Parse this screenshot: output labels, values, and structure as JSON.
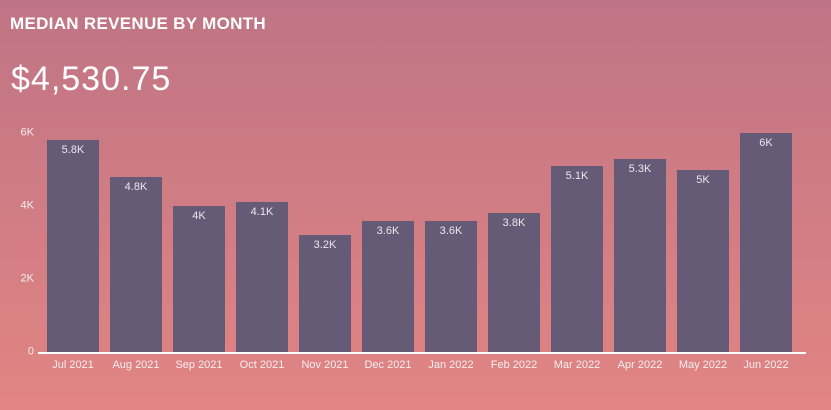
{
  "header": {
    "title": "MEDIAN REVENUE BY MONTH",
    "big_value": "$4,530.75"
  },
  "chart_data": {
    "type": "bar",
    "title": "MEDIAN REVENUE BY MONTH",
    "subtitle": "$4,530.75",
    "categories": [
      "Jul 2021",
      "Aug 2021",
      "Sep 2021",
      "Oct 2021",
      "Nov 2021",
      "Dec 2021",
      "Jan 2022",
      "Feb 2022",
      "Mar 2022",
      "Apr 2022",
      "May 2022",
      "Jun 2022"
    ],
    "values": [
      5800,
      4800,
      4000,
      4100,
      3200,
      3600,
      3600,
      3800,
      5100,
      5300,
      5000,
      6000
    ],
    "bar_labels": [
      "5.8K",
      "4.8K",
      "4K",
      "4.1K",
      "3.2K",
      "3.6K",
      "3.6K",
      "3.8K",
      "5.1K",
      "5.3K",
      "5K",
      "6K"
    ],
    "xlabel": "",
    "ylabel": "",
    "ylim": [
      0,
      6000
    ],
    "yticks": [
      {
        "label": "0",
        "value": 0
      },
      {
        "label": "2K",
        "value": 2000
      },
      {
        "label": "4K",
        "value": 4000
      },
      {
        "label": "6K",
        "value": 6000
      }
    ],
    "grid": false,
    "legend": false
  },
  "colors": {
    "background_top": "#bf7485",
    "background_bottom": "#e28583",
    "bar": "#655b76",
    "text": "#ffffff",
    "tick_text": "#f6edf0",
    "bar_label_text": "#ece7ef",
    "axis_line": "#ffffff"
  }
}
